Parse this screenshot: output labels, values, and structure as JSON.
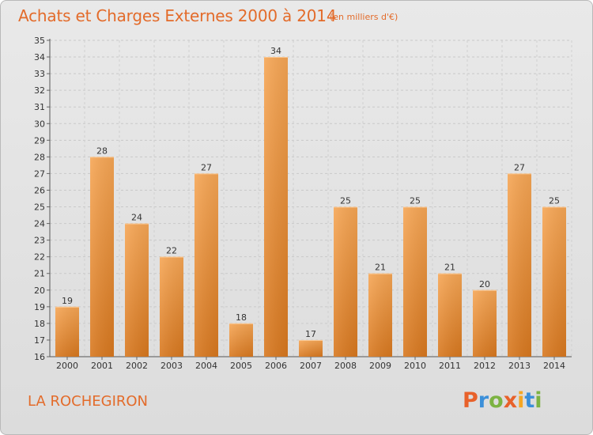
{
  "header": {
    "title": "Achats et Charges Externes 2000 à 2014",
    "subtitle": "(en milliers d'€)"
  },
  "footer": {
    "commune": "LA ROCHEGIRON",
    "logo_text": "Proxiti"
  },
  "colors": {
    "accent": "#e36b2a",
    "bar_light": "#f6a655",
    "bar_dark": "#d8781f",
    "logo_letters": [
      "#e8612a",
      "#3b8fd9",
      "#7cb342",
      "#e8612a",
      "#f5a623",
      "#3b8fd9",
      "#7cb342"
    ]
  },
  "chart_data": {
    "type": "bar",
    "categories": [
      "2000",
      "2001",
      "2002",
      "2003",
      "2004",
      "2005",
      "2006",
      "2007",
      "2008",
      "2009",
      "2010",
      "2011",
      "2012",
      "2013",
      "2014"
    ],
    "values": [
      19,
      28,
      24,
      22,
      27,
      18,
      34,
      17,
      25,
      21,
      25,
      21,
      20,
      27,
      25
    ],
    "title": "Achats et Charges Externes 2000 à 2014",
    "subtitle": "(en milliers d'€)",
    "xlabel": "",
    "ylabel": "",
    "ylim": [
      16,
      35
    ],
    "yticks": [
      16,
      17,
      18,
      19,
      20,
      21,
      22,
      23,
      24,
      25,
      26,
      27,
      28,
      29,
      30,
      31,
      32,
      33,
      34,
      35
    ],
    "grid": true,
    "data_labels": true
  }
}
